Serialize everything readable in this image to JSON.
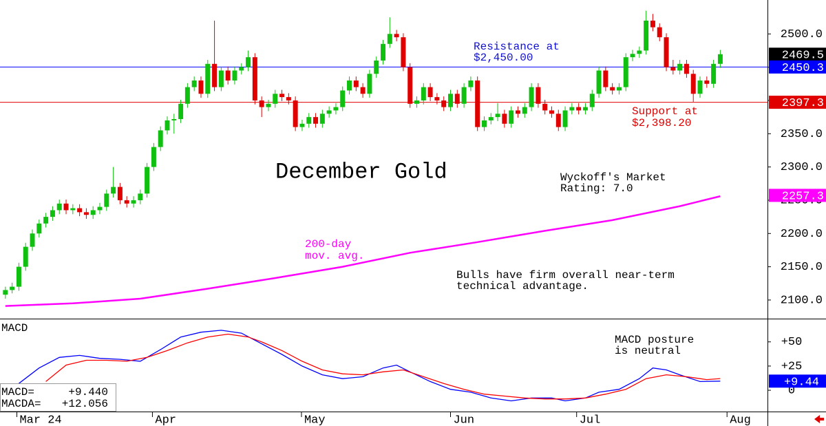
{
  "chart_data": {
    "type": "candlestick",
    "title": "December Gold",
    "up_color": "#10c010",
    "down_color": "#e00000",
    "xlim": [
      -0.8,
      113
    ],
    "xticks": [
      {
        "value": 1.7,
        "label": "Mar 24"
      },
      {
        "value": 21.8,
        "label": "Apr"
      },
      {
        "value": 43.9,
        "label": "May"
      },
      {
        "value": 66,
        "label": "Jun"
      },
      {
        "value": 84.7,
        "label": "Jul"
      },
      {
        "value": 107,
        "label": "Aug"
      }
    ],
    "ylim": [
      2072,
      2551
    ],
    "yticks": [
      {
        "value": 2100,
        "label": "2100.0"
      },
      {
        "value": 2150,
        "label": "2150.0"
      },
      {
        "value": 2200,
        "label": "2200.0"
      },
      {
        "value": 2250,
        "label": "2250.0"
      },
      {
        "value": 2300,
        "label": "2300.0"
      },
      {
        "value": 2350,
        "label": "2350.0"
      },
      {
        "value": 2400,
        "label": "2400.0"
      },
      {
        "value": 2450,
        "label": "2450.0"
      },
      {
        "value": 2500,
        "label": "2500.0"
      }
    ],
    "ohlc": [
      [
        2108,
        2120,
        2102,
        2115
      ],
      [
        2115,
        2126,
        2110,
        2120
      ],
      [
        2120,
        2156,
        2114,
        2150
      ],
      [
        2150,
        2186,
        2144,
        2180
      ],
      [
        2180,
        2206,
        2174,
        2200
      ],
      [
        2200,
        2221,
        2194,
        2215
      ],
      [
        2215,
        2231,
        2209,
        2225
      ],
      [
        2225,
        2241,
        2219,
        2235
      ],
      [
        2235,
        2251,
        2229,
        2245
      ],
      [
        2245,
        2251,
        2229,
        2235
      ],
      [
        2235,
        2244,
        2229,
        2238
      ],
      [
        2238,
        2244,
        2226,
        2232
      ],
      [
        2232,
        2238,
        2222,
        2228
      ],
      [
        2228,
        2241,
        2222,
        2235
      ],
      [
        2235,
        2246,
        2229,
        2240
      ],
      [
        2240,
        2266,
        2234,
        2260
      ],
      [
        2260,
        2300,
        2254,
        2270
      ],
      [
        2270,
        2276,
        2244,
        2250
      ],
      [
        2250,
        2256,
        2239,
        2245
      ],
      [
        2245,
        2256,
        2239,
        2250
      ],
      [
        2250,
        2266,
        2244,
        2260
      ],
      [
        2260,
        2306,
        2254,
        2300
      ],
      [
        2300,
        2336,
        2294,
        2330
      ],
      [
        2330,
        2361,
        2324,
        2355
      ],
      [
        2355,
        2376,
        2349,
        2370
      ],
      [
        2370,
        2380,
        2350,
        2372
      ],
      [
        2372,
        2401,
        2366,
        2395
      ],
      [
        2395,
        2426,
        2389,
        2420
      ],
      [
        2420,
        2436,
        2414,
        2430
      ],
      [
        2430,
        2436,
        2404,
        2410
      ],
      [
        2410,
        2461,
        2404,
        2455
      ],
      [
        2455,
        2520,
        2414,
        2420
      ],
      [
        2420,
        2451,
        2414,
        2445
      ],
      [
        2445,
        2451,
        2424,
        2430
      ],
      [
        2430,
        2451,
        2424,
        2445
      ],
      [
        2445,
        2456,
        2439,
        2450
      ],
      [
        2450,
        2475,
        2444,
        2465
      ],
      [
        2465,
        2471,
        2394,
        2400
      ],
      [
        2400,
        2406,
        2375,
        2390
      ],
      [
        2390,
        2401,
        2384,
        2395
      ],
      [
        2395,
        2416,
        2389,
        2410
      ],
      [
        2410,
        2416,
        2399,
        2405
      ],
      [
        2405,
        2411,
        2394,
        2400
      ],
      [
        2400,
        2406,
        2354,
        2360
      ],
      [
        2360,
        2371,
        2354,
        2365
      ],
      [
        2365,
        2381,
        2359,
        2375
      ],
      [
        2375,
        2381,
        2359,
        2365
      ],
      [
        2365,
        2386,
        2359,
        2380
      ],
      [
        2380,
        2391,
        2374,
        2385
      ],
      [
        2385,
        2396,
        2379,
        2390
      ],
      [
        2390,
        2421,
        2384,
        2415
      ],
      [
        2415,
        2436,
        2409,
        2430
      ],
      [
        2430,
        2436,
        2414,
        2420
      ],
      [
        2420,
        2426,
        2404,
        2410
      ],
      [
        2410,
        2446,
        2404,
        2440
      ],
      [
        2440,
        2466,
        2434,
        2460
      ],
      [
        2460,
        2491,
        2454,
        2485
      ],
      [
        2485,
        2525,
        2479,
        2500
      ],
      [
        2500,
        2506,
        2489,
        2495
      ],
      [
        2495,
        2501,
        2444,
        2450
      ],
      [
        2450,
        2456,
        2389,
        2395
      ],
      [
        2395,
        2406,
        2389,
        2400
      ],
      [
        2400,
        2426,
        2394,
        2420
      ],
      [
        2420,
        2426,
        2399,
        2405
      ],
      [
        2405,
        2411,
        2394,
        2400
      ],
      [
        2400,
        2406,
        2384,
        2390
      ],
      [
        2390,
        2416,
        2384,
        2410
      ],
      [
        2410,
        2416,
        2389,
        2395
      ],
      [
        2395,
        2426,
        2389,
        2420
      ],
      [
        2420,
        2436,
        2414,
        2430
      ],
      [
        2430,
        2436,
        2354,
        2360
      ],
      [
        2360,
        2376,
        2354,
        2370
      ],
      [
        2370,
        2381,
        2364,
        2375
      ],
      [
        2375,
        2396,
        2369,
        2380
      ],
      [
        2380,
        2386,
        2359,
        2365
      ],
      [
        2365,
        2391,
        2359,
        2385
      ],
      [
        2385,
        2391,
        2374,
        2380
      ],
      [
        2380,
        2396,
        2374,
        2390
      ],
      [
        2390,
        2426,
        2384,
        2420
      ],
      [
        2420,
        2426,
        2389,
        2395
      ],
      [
        2395,
        2401,
        2379,
        2385
      ],
      [
        2385,
        2391,
        2374,
        2380
      ],
      [
        2380,
        2386,
        2354,
        2360
      ],
      [
        2360,
        2391,
        2354,
        2385
      ],
      [
        2385,
        2396,
        2379,
        2390
      ],
      [
        2390,
        2396,
        2379,
        2385
      ],
      [
        2385,
        2396,
        2379,
        2390
      ],
      [
        2390,
        2416,
        2384,
        2410
      ],
      [
        2410,
        2451,
        2404,
        2445
      ],
      [
        2445,
        2451,
        2414,
        2420
      ],
      [
        2420,
        2426,
        2409,
        2415
      ],
      [
        2415,
        2426,
        2409,
        2420
      ],
      [
        2420,
        2471,
        2414,
        2465
      ],
      [
        2465,
        2476,
        2459,
        2470
      ],
      [
        2470,
        2481,
        2464,
        2475
      ],
      [
        2475,
        2535,
        2469,
        2520
      ],
      [
        2520,
        2530,
        2504,
        2510
      ],
      [
        2510,
        2516,
        2489,
        2495
      ],
      [
        2495,
        2501,
        2444,
        2450
      ],
      [
        2450,
        2461,
        2439,
        2445
      ],
      [
        2445,
        2461,
        2439,
        2455
      ],
      [
        2455,
        2461,
        2434,
        2440
      ],
      [
        2440,
        2446,
        2398,
        2410
      ],
      [
        2410,
        2436,
        2404,
        2430
      ],
      [
        2430,
        2436,
        2419,
        2425
      ],
      [
        2425,
        2461,
        2419,
        2455
      ],
      [
        2455,
        2476,
        2449,
        2469.5
      ]
    ],
    "moving_average": {
      "label": [
        "200-day",
        "mov. avg."
      ],
      "color": "#ff00ff",
      "x": [
        0,
        10,
        20,
        30,
        40,
        50,
        60,
        70,
        80,
        90,
        100,
        106
      ],
      "values": [
        2091,
        2095,
        2102,
        2117,
        2133,
        2150,
        2171,
        2187,
        2204,
        2220,
        2241,
        2256
      ]
    },
    "price_markers": [
      {
        "value": 2469.5,
        "color": "#000000",
        "line": false
      },
      {
        "value": 2450.3,
        "color": "#0000ff",
        "line": true
      },
      {
        "value": 2397.3,
        "color": "#e00000",
        "line": true
      },
      {
        "value": 2257.3,
        "color": "#ff00ff",
        "line": false
      }
    ],
    "resistance_note": [
      "Resistance at",
      "$2,450.00"
    ],
    "support_note": [
      "Support at",
      "$2,398.20"
    ],
    "rating_note": [
      "Wyckoff's Market",
      "Rating: 7.0"
    ],
    "bulls_note": [
      "Bulls have firm overall near-term",
      "technical advantage."
    ],
    "macd": {
      "title": "MACD",
      "note": [
        "MACD posture",
        "is neutral"
      ],
      "ylim": [
        -22,
        74
      ],
      "yticks": [
        0,
        {
          "value": 25,
          "label": "+25"
        },
        {
          "value": 50,
          "label": "+50"
        }
      ],
      "series": [
        {
          "name": "MACD=",
          "color": "#0000ff",
          "readout": {
            "value": 9.44,
            "label": "+9.440"
          },
          "x": [
            2,
            5,
            8,
            11,
            14,
            17,
            20,
            23,
            26,
            29,
            32,
            35,
            38,
            41,
            44,
            47,
            50,
            53,
            56,
            58,
            60,
            63,
            66,
            69,
            72,
            75,
            78,
            81,
            83,
            86,
            88,
            91,
            94,
            96,
            98,
            100,
            103,
            106
          ],
          "values": [
            7,
            23,
            34,
            36,
            33,
            32,
            30,
            42,
            55,
            60,
            62,
            59,
            48,
            37,
            25,
            16,
            12,
            14,
            23,
            26,
            19,
            9,
            1,
            -2,
            -8,
            -11,
            -8,
            -8,
            -11,
            -8,
            -2,
            1,
            12,
            23,
            21,
            16,
            9,
            9.44
          ]
        },
        {
          "name": "MACDA=",
          "color": "#ff0000",
          "readout": {
            "value": 12.056,
            "label": "+12.056"
          },
          "x": [
            6,
            9,
            12,
            15,
            18,
            21,
            24,
            27,
            30,
            33,
            36,
            38,
            41,
            44,
            47,
            50,
            53,
            56,
            59,
            62,
            65,
            68,
            71,
            74,
            77,
            80,
            83,
            86,
            89,
            92,
            95,
            98,
            101,
            104,
            106
          ],
          "values": [
            9,
            26,
            31,
            31,
            30,
            34,
            41,
            49,
            55,
            58,
            55,
            50,
            41,
            30,
            21,
            17,
            16,
            19,
            21,
            14,
            7,
            1,
            -4,
            -6,
            -8,
            -9,
            -9,
            -8,
            -4,
            1,
            12,
            16,
            14,
            11,
            12.056
          ]
        }
      ],
      "marker": {
        "value": 9.44,
        "label": "+9.44",
        "color": "#0000ff"
      }
    }
  }
}
